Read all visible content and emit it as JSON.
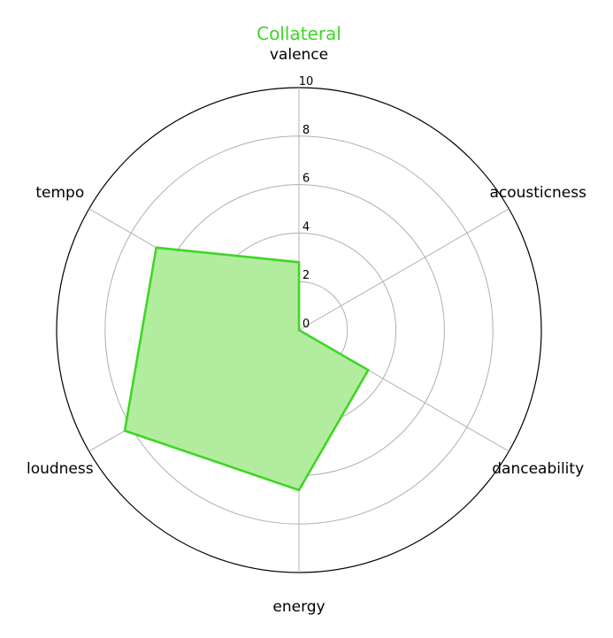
{
  "chart_data": {
    "type": "radar",
    "title": "Collateral",
    "axes": [
      "valence",
      "acousticness",
      "danceability",
      "energy",
      "loudness",
      "tempo"
    ],
    "rticks": [
      "0",
      "2",
      "4",
      "6",
      "8",
      "10"
    ],
    "rlim": [
      0,
      10
    ],
    "grid": true,
    "series": [
      {
        "values": [
          2.8,
          0.0,
          3.3,
          6.6,
          8.3,
          6.8
        ]
      }
    ],
    "colors": {
      "line": "#3fd626",
      "fill": "#b2ec9f",
      "title": "#3fd626",
      "grid": "#b0b0b0",
      "frame": "#000000"
    }
  }
}
